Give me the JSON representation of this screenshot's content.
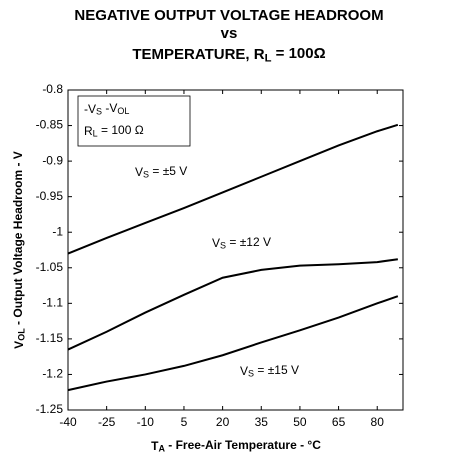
{
  "chart_data": {
    "type": "line",
    "title": [
      [
        {
          "t": "NEGATIVE OUTPUT VOLTAGE HEADROOM"
        }
      ],
      [
        {
          "t": "vs"
        }
      ],
      [
        {
          "t": "TEMPERATURE, R"
        },
        {
          "sub": "L"
        },
        {
          "t": " = 100Ω"
        }
      ]
    ],
    "x_label": [
      {
        "t": "T"
      },
      {
        "sub": "A"
      },
      {
        "t": " - Free-Air Temperature - °C"
      }
    ],
    "y_label": [
      {
        "t": "V"
      },
      {
        "sub": "OL"
      },
      {
        "t": " - Output Voltage Headroom - V"
      }
    ],
    "annotation": [
      [
        {
          "t": "-V"
        },
        {
          "sub": "S"
        },
        {
          "t": " -V"
        },
        {
          "sub": "OL"
        }
      ],
      [
        {
          "t": "R"
        },
        {
          "sub": "L"
        },
        {
          "t": " = 100 Ω"
        }
      ]
    ],
    "x": [
      -40,
      -25,
      -10,
      5,
      20,
      35,
      50,
      65,
      80,
      88
    ],
    "series": [
      {
        "name": [
          {
            "t": "V"
          },
          {
            "sub": "S"
          },
          {
            "t": " = ±5 V"
          }
        ],
        "color": "#000000",
        "values": [
          -1.03,
          -1.008,
          -0.987,
          -0.966,
          -0.944,
          -0.922,
          -0.9,
          -0.878,
          -0.858,
          -0.849
        ]
      },
      {
        "name": [
          {
            "t": "V"
          },
          {
            "sub": "S"
          },
          {
            "t": " = ±12 V"
          }
        ],
        "color": "#000000",
        "values": [
          -1.165,
          -1.14,
          -1.113,
          -1.088,
          -1.064,
          -1.053,
          -1.047,
          -1.045,
          -1.042,
          -1.038
        ]
      },
      {
        "name": [
          {
            "t": "V"
          },
          {
            "sub": "S"
          },
          {
            "t": " = ±15 V"
          }
        ],
        "color": "#000000",
        "values": [
          -1.222,
          -1.21,
          -1.2,
          -1.188,
          -1.173,
          -1.155,
          -1.138,
          -1.12,
          -1.1,
          -1.09
        ]
      }
    ],
    "xlim": [
      -40,
      90
    ],
    "xticks": [
      -40,
      -25,
      -10,
      5,
      20,
      35,
      50,
      65,
      80
    ],
    "ylim": [
      -1.25,
      -0.8
    ],
    "yticks": [
      -1.25,
      -1.2,
      -1.15,
      -1.1,
      -1.05,
      -1,
      -0.95,
      -0.9,
      -0.85,
      -0.8
    ],
    "grid": false
  }
}
